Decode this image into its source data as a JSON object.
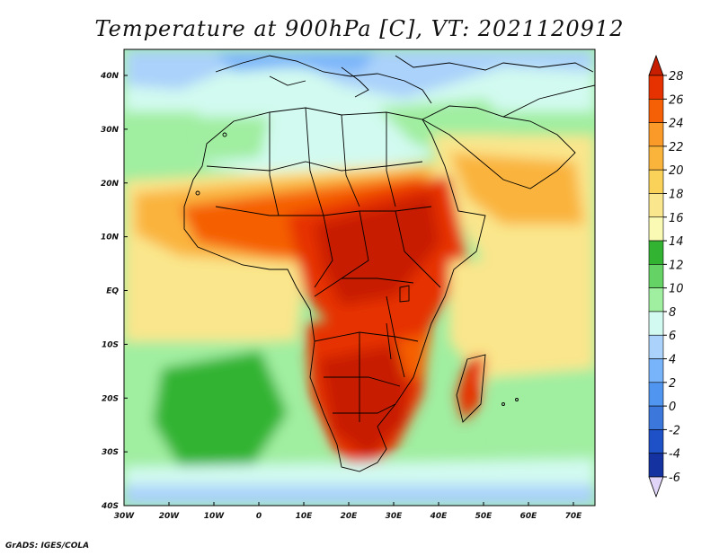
{
  "title": "Temperature at 900hPa [C], VT: 2021120912",
  "credit": "GrADS: IGES/COLA",
  "axes": {
    "x_ticks": [
      "30W",
      "20W",
      "10W",
      "0",
      "10E",
      "20E",
      "30E",
      "40E",
      "50E",
      "60E",
      "70E"
    ],
    "y_ticks": [
      "40N",
      "30N",
      "20N",
      "10N",
      "EQ",
      "10S",
      "20S",
      "30S",
      "40S"
    ]
  },
  "colorbar": {
    "labels": [
      "28",
      "26",
      "24",
      "22",
      "20",
      "18",
      "16",
      "14",
      "12",
      "10",
      "8",
      "6",
      "4",
      "2",
      "0",
      "-2",
      "-4",
      "-6"
    ],
    "colors": [
      "#c81e00",
      "#e63200",
      "#f55f05",
      "#fa9a28",
      "#fab43c",
      "#fad25a",
      "#fae68c",
      "#fafab4",
      "#32b432",
      "#64d264",
      "#a0eea0",
      "#d2faf0",
      "#aad2fa",
      "#78b4fa",
      "#5096f0",
      "#3c78dc",
      "#1e50c8",
      "#1432a0",
      "#0a1478"
    ]
  },
  "map_colors": {
    "ocean_cool": "#d2faf0",
    "ocean_green": "#a0eea0",
    "warm_yellow": "#fae68c",
    "warm_orange": "#fab43c",
    "hot_orange": "#f55f05",
    "hot_red": "#e63200",
    "cold_blue": "#78b4fa",
    "boundary": "#000000"
  }
}
